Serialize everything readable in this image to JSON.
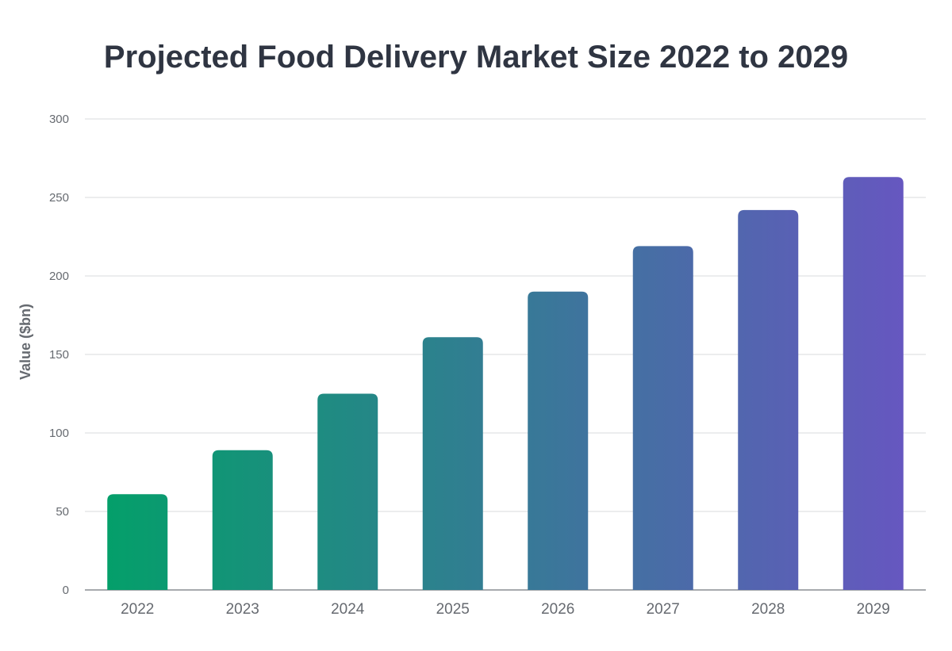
{
  "chart_data": {
    "type": "bar",
    "title": "Projected Food Delivery Market Size 2022 to 2029",
    "xlabel": "",
    "ylabel": "Value ($bn)",
    "categories": [
      "2022",
      "2023",
      "2024",
      "2025",
      "2026",
      "2027",
      "2028",
      "2029"
    ],
    "values": [
      61,
      89,
      125,
      161,
      190,
      219,
      242,
      263
    ],
    "ylim": [
      0,
      300
    ],
    "yticks": [
      "0",
      "50",
      "100",
      "150",
      "200",
      "250",
      "300"
    ],
    "grid": true,
    "legend": "none",
    "colors": {
      "start": "#049f6a",
      "end": "#6657c0",
      "grid": "#d9dbde",
      "axis": "#8a8d92"
    }
  }
}
